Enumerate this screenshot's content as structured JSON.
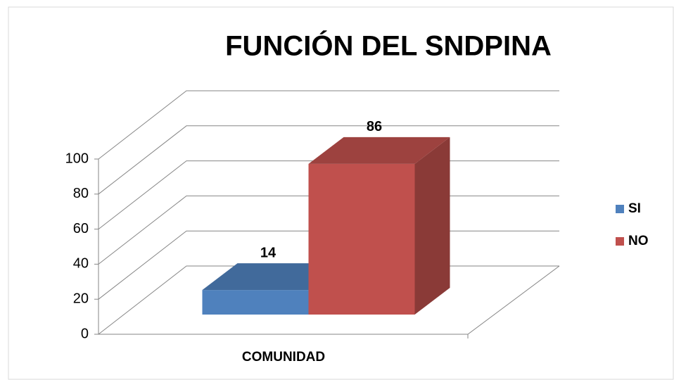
{
  "chart_data": {
    "type": "bar",
    "title": "FUNCIÓN DEL SNDPINA",
    "categories": [
      "COMUNIDAD"
    ],
    "series": [
      {
        "name": "SI",
        "color": "#4f81bd",
        "values": [
          14
        ]
      },
      {
        "name": "NO",
        "color": "#c0504d",
        "values": [
          86
        ]
      }
    ],
    "ylim": [
      0,
      100
    ],
    "yticks": [
      0,
      20,
      40,
      60,
      80,
      100
    ],
    "grid": true,
    "legend": "right"
  }
}
